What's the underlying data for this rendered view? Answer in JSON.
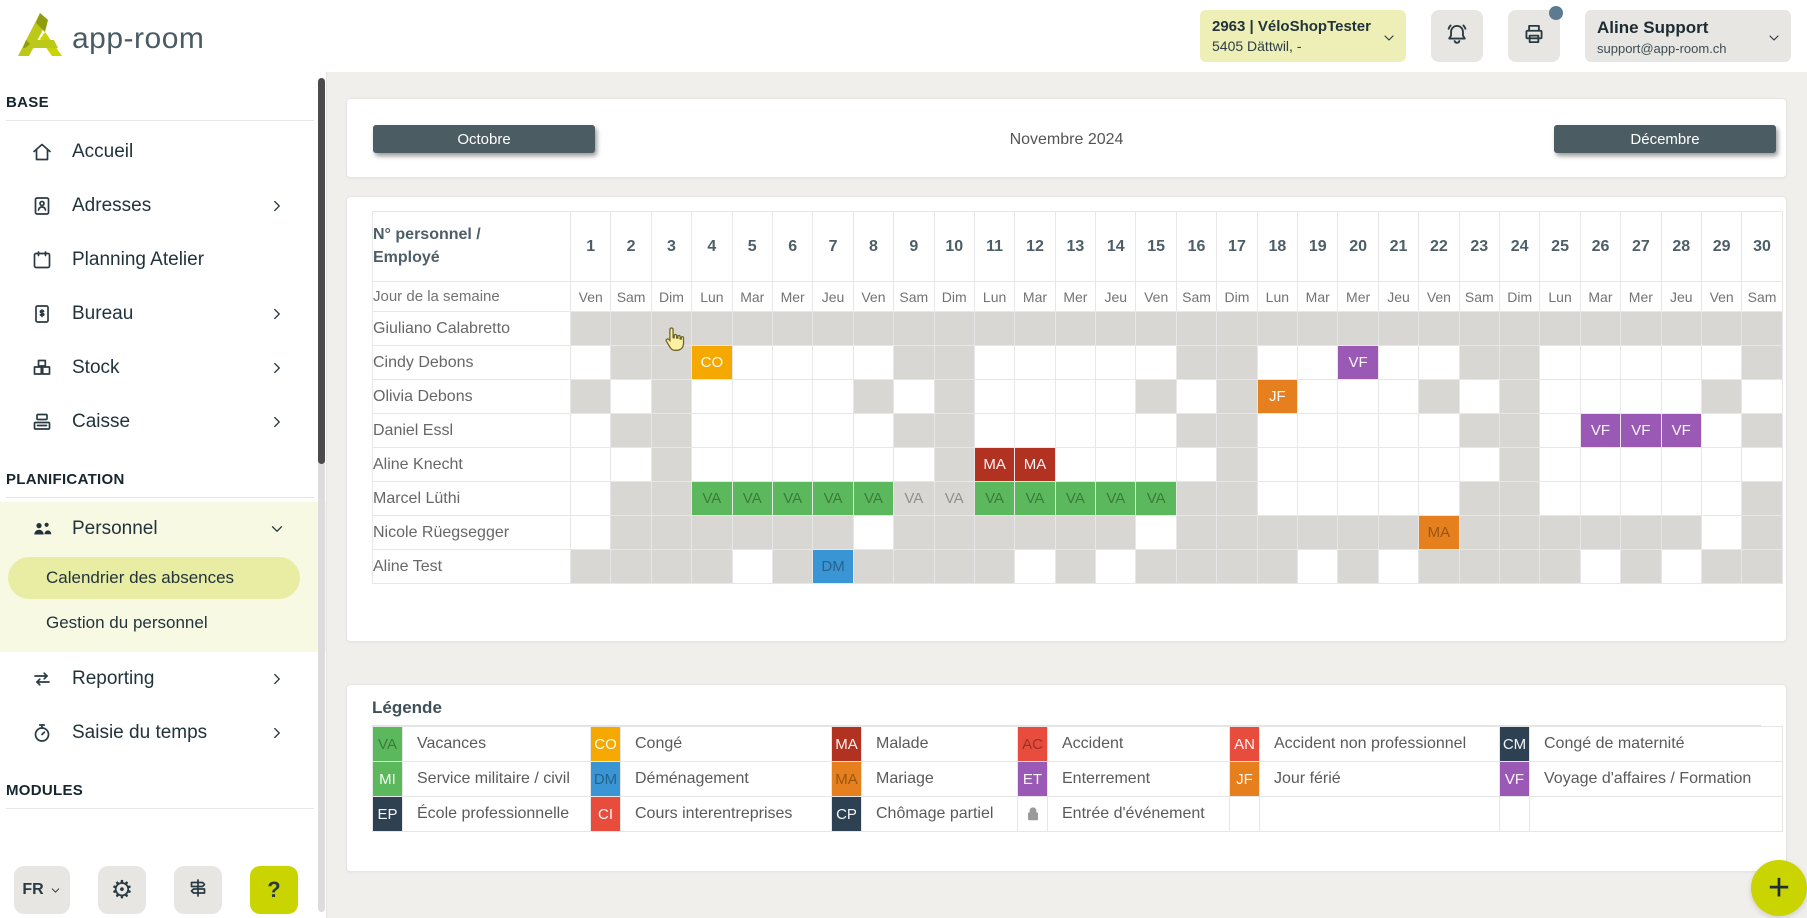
{
  "brand": "app-room",
  "topbar": {
    "company": {
      "line1": "2963 | VéloShopTester",
      "line2": "5405 Dättwil, -"
    },
    "user": {
      "name": "Aline Support",
      "email": "support@app-room.ch"
    }
  },
  "sidebar": {
    "sections": [
      {
        "title": "BASE",
        "items": [
          {
            "label": "Accueil",
            "icon": "home"
          },
          {
            "label": "Adresses",
            "icon": "address-book",
            "chevron": "right"
          },
          {
            "label": "Planning Atelier",
            "icon": "calendar"
          },
          {
            "label": "Bureau",
            "icon": "invoice",
            "chevron": "right"
          },
          {
            "label": "Stock",
            "icon": "stock",
            "chevron": "right"
          },
          {
            "label": "Caisse",
            "icon": "cash-register",
            "chevron": "right"
          }
        ]
      },
      {
        "title": "PLANIFICATION",
        "items": [
          {
            "label": "Personnel",
            "icon": "people",
            "chevron": "down",
            "expanded": true,
            "children": [
              {
                "label": "Calendrier des absences",
                "active": true
              },
              {
                "label": "Gestion du personnel",
                "active": false
              }
            ]
          },
          {
            "label": "Reporting",
            "icon": "arrows",
            "chevron": "right"
          },
          {
            "label": "Saisie du temps",
            "icon": "stopwatch",
            "chevron": "right"
          }
        ]
      },
      {
        "title": "MODULES",
        "items": []
      }
    ],
    "footer": {
      "lang": "FR",
      "help": "?"
    }
  },
  "monthnav": {
    "prev": "Octobre",
    "title": "Novembre 2024",
    "next": "Décembre"
  },
  "calendar": {
    "corner_line1": "N° personnel /",
    "corner_line2": "Employé",
    "weekday_label": "Jour de la semaine",
    "days": 30,
    "weekdays": [
      "Ven",
      "Sam",
      "Dim",
      "Lun",
      "Mar",
      "Mer",
      "Jeu",
      "Ven",
      "Sam",
      "Dim",
      "Lun",
      "Mar",
      "Mer",
      "Jeu",
      "Ven",
      "Sam",
      "Dim",
      "Lun",
      "Mar",
      "Mer",
      "Jeu",
      "Ven",
      "Sam",
      "Dim",
      "Lun",
      "Mar",
      "Mer",
      "Jeu",
      "Ven",
      "Sam"
    ],
    "employees": [
      {
        "name": "Giuliano Calabretto",
        "off": [
          1,
          2,
          3,
          4,
          5,
          6,
          7,
          8,
          9,
          10,
          11,
          12,
          13,
          14,
          15,
          16,
          17,
          18,
          19,
          20,
          21,
          22,
          23,
          24,
          25,
          26,
          27,
          28,
          29,
          30
        ],
        "events": []
      },
      {
        "name": "Cindy Debons",
        "off": [
          2,
          3,
          9,
          10,
          16,
          17,
          23,
          24,
          30
        ],
        "events": [
          {
            "day": 4,
            "code": "CO"
          },
          {
            "day": 20,
            "code": "VF"
          }
        ]
      },
      {
        "name": "Olivia Debons",
        "off": [
          1,
          3,
          8,
          10,
          15,
          17,
          22,
          24,
          29
        ],
        "events": [
          {
            "day": 18,
            "code": "JF"
          }
        ]
      },
      {
        "name": "Daniel Essl",
        "off": [
          2,
          3,
          9,
          10,
          16,
          17,
          23,
          24,
          30
        ],
        "events": [
          {
            "day": 26,
            "code": "VF"
          },
          {
            "day": 27,
            "code": "VF"
          },
          {
            "day": 28,
            "code": "VF"
          }
        ]
      },
      {
        "name": "Aline Knecht",
        "off": [
          3,
          10,
          17,
          24
        ],
        "events": [
          {
            "day": 11,
            "code": "MA"
          },
          {
            "day": 12,
            "code": "MA"
          }
        ]
      },
      {
        "name": "Marcel Lüthi",
        "off": [
          2,
          3,
          9,
          10,
          16,
          17,
          23,
          24,
          30
        ],
        "events": [
          {
            "day": 4,
            "code": "VA"
          },
          {
            "day": 5,
            "code": "VA"
          },
          {
            "day": 6,
            "code": "VA"
          },
          {
            "day": 7,
            "code": "VA"
          },
          {
            "day": 8,
            "code": "VA"
          },
          {
            "day": 9,
            "code": "VA",
            "flat": true
          },
          {
            "day": 10,
            "code": "VA",
            "flat": true
          },
          {
            "day": 11,
            "code": "VA"
          },
          {
            "day": 12,
            "code": "VA"
          },
          {
            "day": 13,
            "code": "VA"
          },
          {
            "day": 14,
            "code": "VA"
          },
          {
            "day": 15,
            "code": "VA"
          }
        ]
      },
      {
        "name": "Nicole Rüegsegger",
        "off": [
          2,
          3,
          4,
          5,
          6,
          7,
          9,
          10,
          11,
          12,
          13,
          14,
          16,
          17,
          18,
          19,
          20,
          21,
          23,
          24,
          25,
          26,
          27,
          28,
          30
        ],
        "events": [
          {
            "day": 22,
            "code": "MG"
          }
        ]
      },
      {
        "name": "Aline Test",
        "off": [
          1,
          2,
          3,
          4,
          6,
          8,
          9,
          10,
          11,
          13,
          15,
          16,
          17,
          18,
          20,
          22,
          23,
          24,
          25,
          27,
          29,
          30
        ],
        "events": [
          {
            "day": 7,
            "code": "DM"
          }
        ]
      }
    ]
  },
  "codes": {
    "VA": {
      "label": "VA",
      "bg": "#5cb85c",
      "muted": true
    },
    "CO": {
      "label": "CO",
      "bg": "#f5a800",
      "muted": false
    },
    "MA": {
      "label": "MA",
      "bg": "#b23222",
      "muted": false
    },
    "AC": {
      "label": "AC",
      "bg": "#e74c3c",
      "muted": true
    },
    "AN": {
      "label": "AN",
      "bg": "#e74c3c",
      "muted": false
    },
    "CM": {
      "label": "CM",
      "bg": "#2e4153",
      "muted": false
    },
    "MI": {
      "label": "MI",
      "bg": "#5cb85c",
      "muted": false
    },
    "DM": {
      "label": "DM",
      "bg": "#3a95d4",
      "muted": true
    },
    "MG": {
      "label": "MA",
      "bg": "#e6801e",
      "muted": true
    },
    "ET": {
      "label": "ET",
      "bg": "#9b59b6",
      "muted": false
    },
    "JF": {
      "label": "JF",
      "bg": "#e6801e",
      "muted": false
    },
    "VF": {
      "label": "VF",
      "bg": "#9b59b6",
      "muted": false
    },
    "EP": {
      "label": "EP",
      "bg": "#2e4153",
      "muted": false
    },
    "CI": {
      "label": "CI",
      "bg": "#e74c3c",
      "muted": false
    },
    "CP": {
      "label": "CP",
      "bg": "#2e4153",
      "muted": false
    }
  },
  "legend": {
    "title": "Légende",
    "rows": [
      [
        {
          "code": "VA",
          "label": "Vacances"
        },
        {
          "code": "CO",
          "label": "Congé"
        },
        {
          "code": "MA",
          "label": "Malade"
        },
        {
          "code": "AC",
          "label": "Accident"
        },
        {
          "code": "AN",
          "label": "Accident non professionnel"
        },
        {
          "code": "CM",
          "label": "Congé de maternité"
        }
      ],
      [
        {
          "code": "MI",
          "label": "Service militaire / civil"
        },
        {
          "code": "DM",
          "label": "Déménagement"
        },
        {
          "code": "MG",
          "label": "Mariage"
        },
        {
          "code": "ET",
          "label": "Enterrement"
        },
        {
          "code": "JF",
          "label": "Jour férié"
        },
        {
          "code": "VF",
          "label": "Voyage d'affaires / Formation"
        }
      ],
      [
        {
          "code": "EP",
          "label": "École professionnelle"
        },
        {
          "code": "CI",
          "label": "Cours interentreprises"
        },
        {
          "code": "CP",
          "label": "Chômage partiel"
        },
        {
          "icon": "lock",
          "label": "Entrée d'événement"
        },
        null,
        null
      ]
    ]
  },
  "fab": {
    "plus": "+"
  }
}
